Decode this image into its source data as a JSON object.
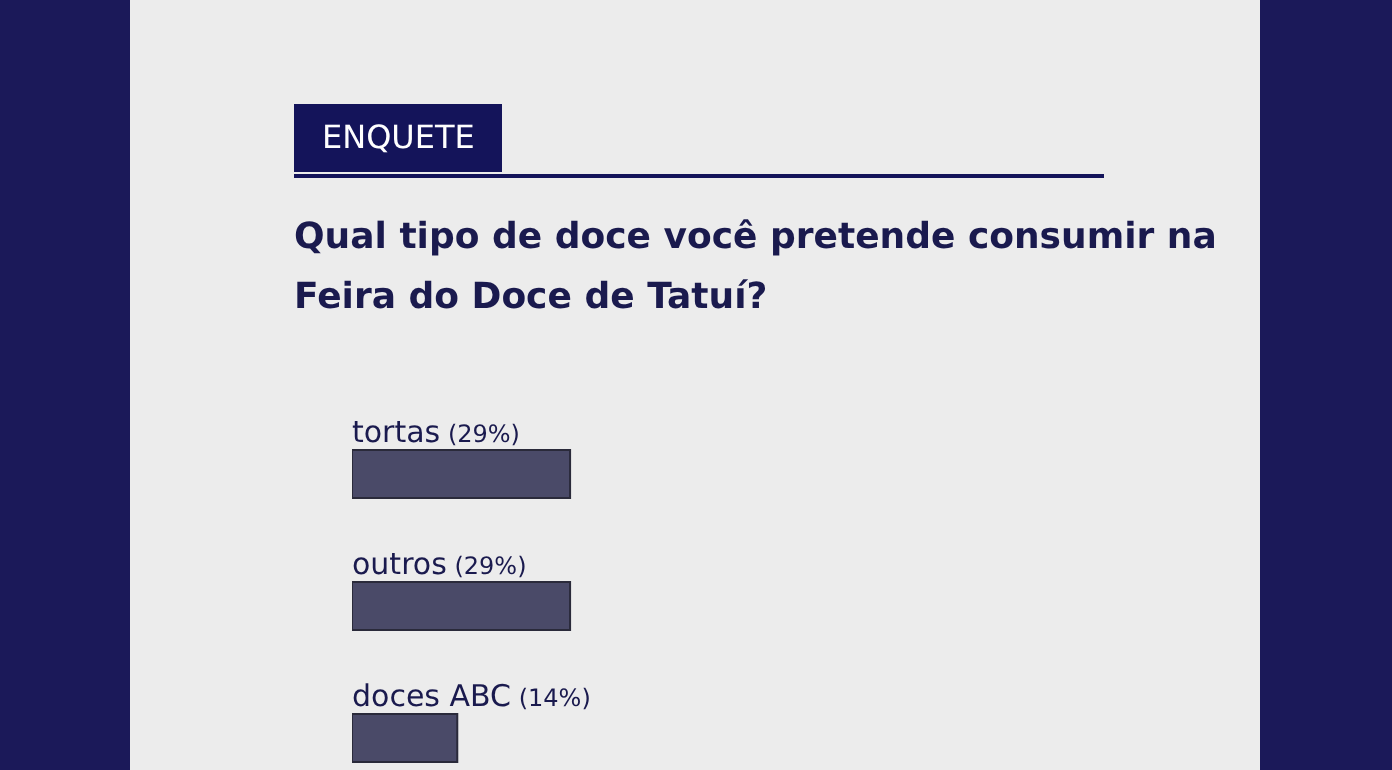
{
  "chart_data": {
    "type": "bar",
    "orientation": "horizontal",
    "title": "Qual tipo de doce você pretende consumir na Feira do Doce de Tatuí?",
    "annotations": [
      "ENQUETE"
    ],
    "categories": [
      "tortas",
      "outros",
      "doces ABC"
    ],
    "values": [
      29,
      29,
      14
    ],
    "value_labels": [
      "(29%)",
      "(29%)",
      "(14%)"
    ],
    "color": "#4a4a68"
  }
}
